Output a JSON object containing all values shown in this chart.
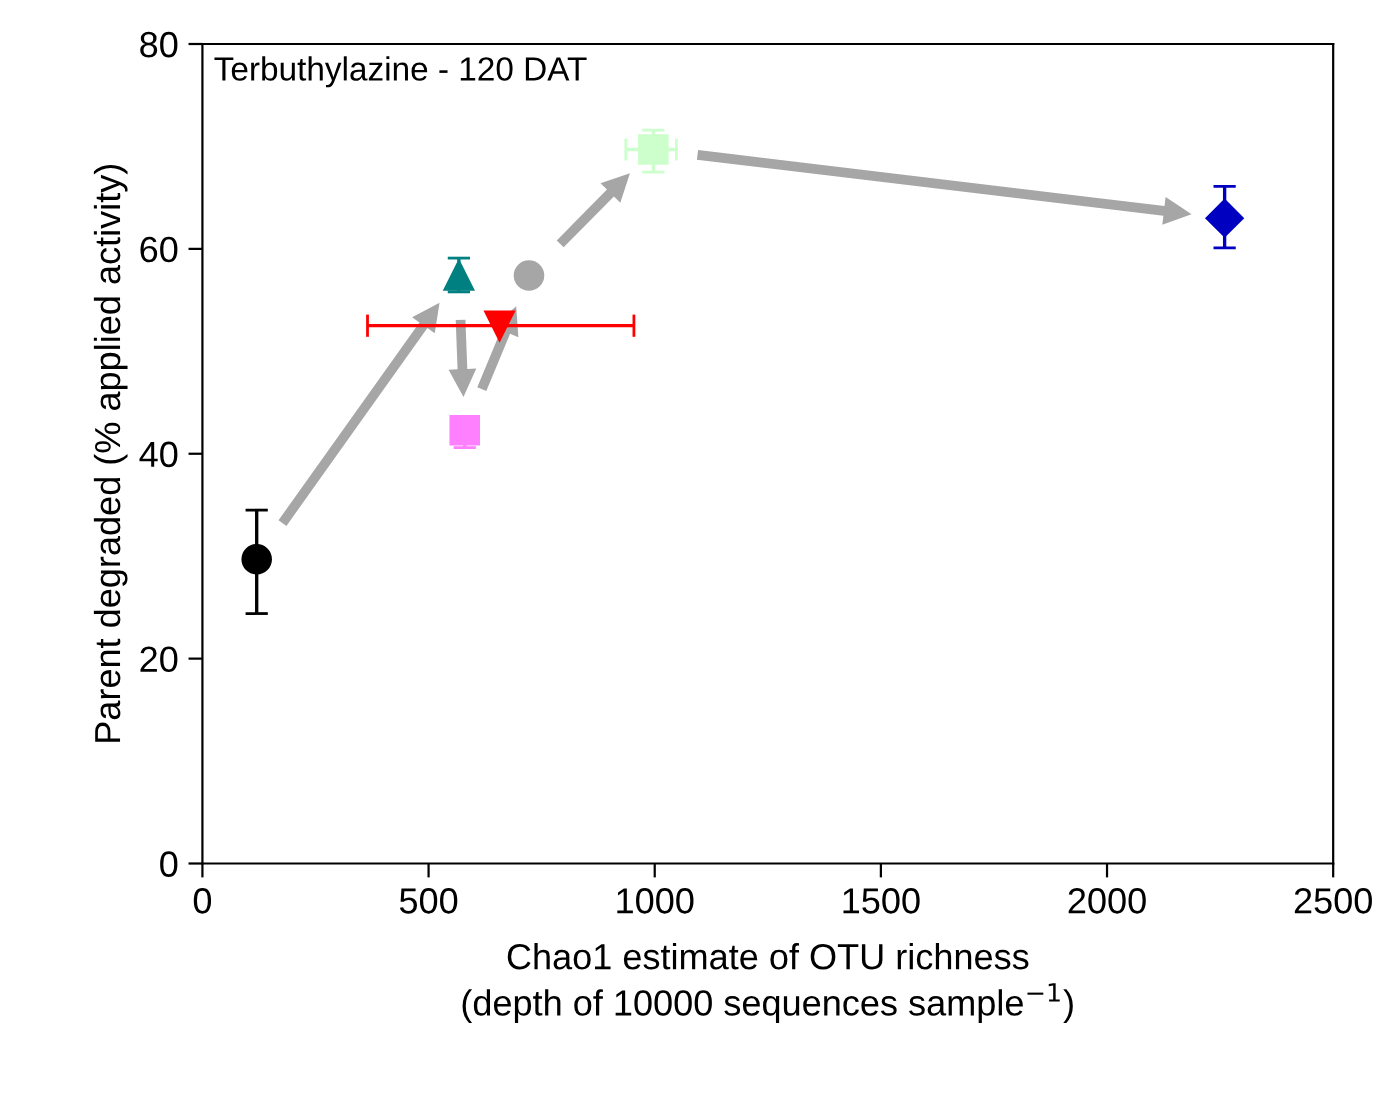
{
  "chart_data": {
    "type": "scatter",
    "xlabel": "Chao1 estimate of OTU richness\n(depth of 10000 sequences sample$^{−1}$)",
    "ylabel": "Parent degraded (% applied activity)",
    "annotations": [
      "Terbuthylazine - 120 DAT"
    ],
    "xlim": [
      0,
      2500
    ],
    "xticks": [
      0,
      500,
      1000,
      1500,
      2000,
      2500
    ],
    "ylim": [
      0,
      80
    ],
    "yticks": [
      0,
      20,
      40,
      60,
      80
    ],
    "grid": false,
    "legend": false,
    "series": [
      {
        "color": "#000000",
        "marker": "circle",
        "x": [
          120
        ],
        "values": [
          29.7
        ],
        "errors": [
          [
            24.4,
            34.5
          ]
        ]
      },
      {
        "color": "#008080",
        "marker": "triangle",
        "x": [
          567
        ],
        "values": [
          57.4
        ],
        "errors": [
          [
            55.8,
            59.1
          ]
        ]
      },
      {
        "color": "#ff80ff",
        "marker": "square",
        "x": [
          580
        ],
        "values": [
          42.3
        ],
        "errors": [
          [
            40.6,
            43.5
          ]
        ]
      },
      {
        "color": "#a6a6a6",
        "marker": "circle",
        "x": [
          722
        ],
        "values": [
          57.4
        ]
      },
      {
        "color": "#ccffcc",
        "marker": "square",
        "x": [
          997
        ],
        "values": [
          69.7
        ],
        "errors": [
          [
            67.5,
            71.6
          ]
        ],
        "xerrors": [
          [
            936,
            1048
          ]
        ]
      },
      {
        "color": "#0000c0",
        "marker": "diamond",
        "x": [
          2260
        ],
        "values": [
          63.0
        ],
        "errors": [
          [
            60.1,
            66.1
          ]
        ]
      },
      {
        "color": "#ff0000",
        "marker": "triangle_down",
        "x": [
          657
        ],
        "values": [
          52.5
        ],
        "xerrors": [
          [
            365,
            954
          ]
        ]
      }
    ]
  }
}
